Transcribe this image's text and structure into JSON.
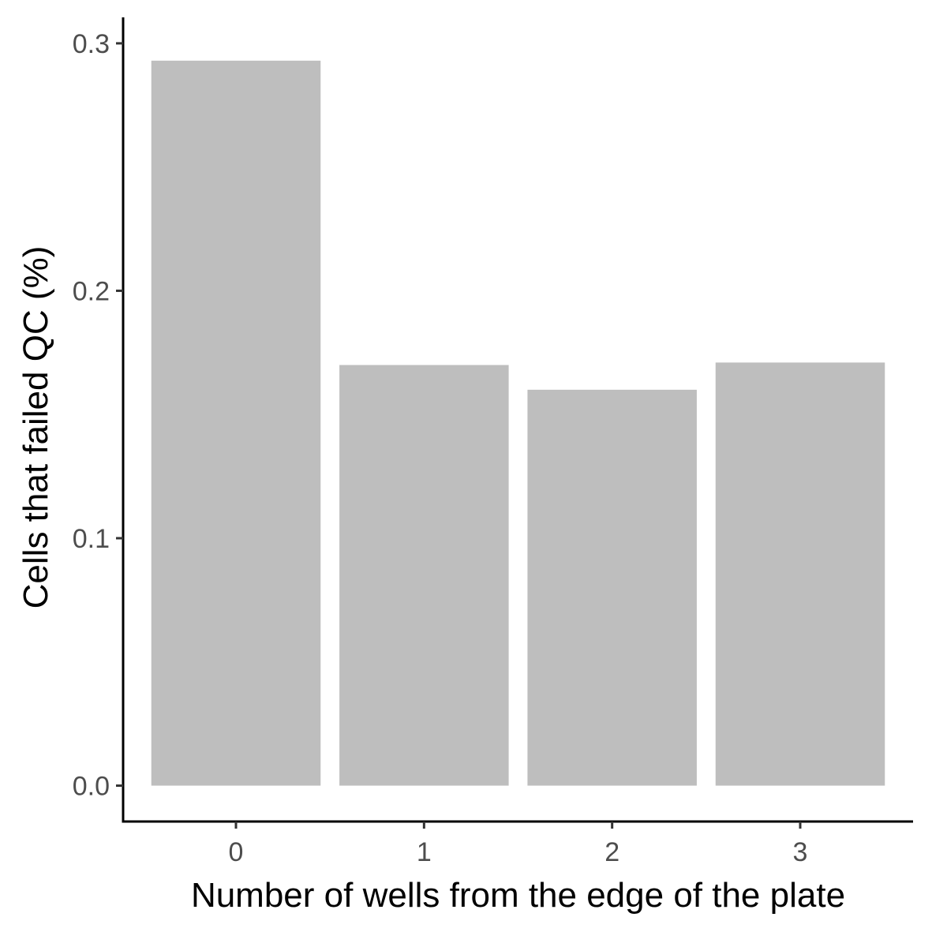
{
  "chart_data": {
    "type": "bar",
    "categories": [
      "0",
      "1",
      "2",
      "3"
    ],
    "values": [
      0.293,
      0.17,
      0.16,
      0.171
    ],
    "xlabel": "Number of wells from the edge of the plate",
    "ylabel": "Cells that failed QC (%)",
    "ylim": [
      -0.0145,
      0.3105
    ],
    "yticks": [
      0.0,
      0.1,
      0.2,
      0.3
    ],
    "ytick_labels": [
      "0.0",
      "0.1",
      "0.2",
      "0.3"
    ],
    "grid": false,
    "legend": "none",
    "bar_color": "#bebebe",
    "axis_color": "#000000"
  }
}
